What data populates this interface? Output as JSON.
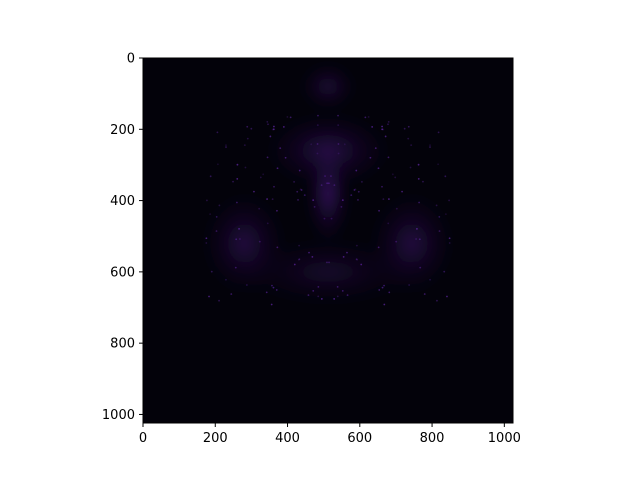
{
  "chart_data": {
    "type": "heatmap",
    "title": "",
    "xlabel": "",
    "ylabel": "",
    "xlim": [
      0,
      1024
    ],
    "ylim": [
      1024,
      0
    ],
    "x_ticks": [
      0,
      200,
      400,
      600,
      800,
      1000
    ],
    "y_ticks": [
      0,
      200,
      400,
      600,
      800,
      1000
    ],
    "x_tick_labels": [
      "0",
      "200",
      "400",
      "600",
      "800",
      "1000"
    ],
    "y_tick_labels": [
      "0",
      "200",
      "400",
      "600",
      "800",
      "1000"
    ],
    "grid": false,
    "legend": "none",
    "colors": {
      "background": "#03020a",
      "glow_dark": "#1a0a33",
      "glow_mid": "#3d1470",
      "glow_bright": "#6a2bb5"
    },
    "regions": [
      {
        "name": "head",
        "cx": 512,
        "cy": 80,
        "rx": 80,
        "ry": 70,
        "intensity": 0.35
      },
      {
        "name": "shoulders",
        "cx": 512,
        "cy": 260,
        "rx": 180,
        "ry": 110,
        "intensity": 0.45
      },
      {
        "name": "center-column",
        "cx": 512,
        "cy": 380,
        "rx": 60,
        "ry": 150,
        "intensity": 0.6
      },
      {
        "name": "left-lobe",
        "cx": 280,
        "cy": 520,
        "rx": 120,
        "ry": 150,
        "intensity": 0.4
      },
      {
        "name": "right-lobe",
        "cx": 744,
        "cy": 520,
        "rx": 120,
        "ry": 150,
        "intensity": 0.4
      },
      {
        "name": "lower-body",
        "cx": 512,
        "cy": 600,
        "rx": 260,
        "ry": 100,
        "intensity": 0.25
      }
    ]
  }
}
